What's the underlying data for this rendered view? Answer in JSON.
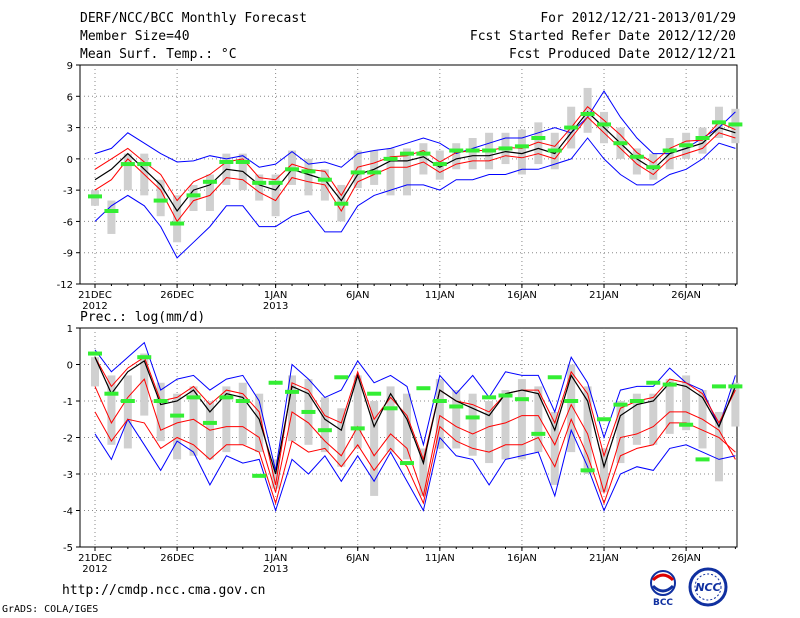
{
  "header": {
    "title": "DERF/NCC/BCC Monthly Forecast",
    "member_size": "Member Size=40",
    "variable": "Mean Surf. Temp.: °C",
    "period": "For 2012/12/21-2013/01/29",
    "started": "Fcst Started Refer Date 2012/12/20",
    "produced": "Fcst Produced Date 2012/12/21"
  },
  "footer": {
    "url": "http://cmdp.ncc.cma.gov.cn",
    "grads": "GrADS: COLA/IGES",
    "logo_bcc": "BCC",
    "logo_ncc": "NCC"
  },
  "colors": {
    "blue": "#0000ff",
    "red": "#ff0000",
    "black": "#000000",
    "green": "#33ee33",
    "box": "#d0d0d0",
    "dotted": "#888888"
  },
  "chart_data": [
    {
      "type": "line",
      "title": "Mean Surf. Temp.: °C",
      "x_day_index": [
        0,
        1,
        2,
        3,
        4,
        5,
        6,
        7,
        8,
        9,
        10,
        11,
        12,
        13,
        14,
        15,
        16,
        17,
        18,
        19,
        20,
        21,
        22,
        23,
        24,
        25,
        26,
        27,
        28,
        29,
        30,
        31,
        32,
        33,
        34,
        35,
        36,
        37,
        38,
        39
      ],
      "x_ticks": [
        {
          "day": 0,
          "label": "21DEC",
          "sub": "2012"
        },
        {
          "day": 5,
          "label": "26DEC",
          "sub": ""
        },
        {
          "day": 11,
          "label": "1JAN",
          "sub": "2013"
        },
        {
          "day": 16,
          "label": "6JAN",
          "sub": ""
        },
        {
          "day": 21,
          "label": "11JAN",
          "sub": ""
        },
        {
          "day": 26,
          "label": "16JAN",
          "sub": ""
        },
        {
          "day": 31,
          "label": "21JAN",
          "sub": ""
        },
        {
          "day": 36,
          "label": "26JAN",
          "sub": ""
        }
      ],
      "ylim": [
        -12,
        9
      ],
      "yticks": [
        -12,
        -9,
        -6,
        -3,
        0,
        3,
        6,
        9
      ],
      "series": [
        {
          "name": "max",
          "color": "blue",
          "values": [
            0.5,
            1,
            2.5,
            1.5,
            0.5,
            -0.3,
            -0.2,
            0.3,
            0,
            0.3,
            -0.8,
            -0.5,
            0.7,
            -0.5,
            -0.3,
            -0.8,
            0.5,
            0.8,
            1,
            1.5,
            2,
            1.5,
            0.5,
            1,
            1.5,
            2,
            2,
            2.5,
            3,
            2.5,
            4,
            6.5,
            4,
            2,
            0.5,
            0.5,
            1,
            2,
            3,
            4.5
          ]
        },
        {
          "name": "upper",
          "color": "red",
          "values": [
            -1,
            0,
            1,
            -0.3,
            -1.5,
            -4,
            -2.2,
            -1.5,
            -0.3,
            0,
            -1.8,
            -2,
            -0.5,
            -1,
            -1.2,
            -3.5,
            -0.8,
            -0.4,
            0.2,
            0.3,
            0.8,
            -0.3,
            0.6,
            0.8,
            0.8,
            1.1,
            1,
            1.6,
            1.2,
            3,
            5,
            3.7,
            2.3,
            0.6,
            -0.4,
            1,
            1.7,
            1.8,
            3.5,
            2.8
          ]
        },
        {
          "name": "mean",
          "color": "black",
          "values": [
            -2,
            -1,
            0.5,
            -1,
            -2.5,
            -5,
            -3,
            -2.5,
            -1,
            -1.2,
            -2.5,
            -3,
            -1,
            -1.5,
            -2,
            -4,
            -1.5,
            -1,
            -0.2,
            -0.2,
            0.2,
            -0.8,
            0,
            0.3,
            0.3,
            0.7,
            0.5,
            1,
            0.5,
            2.5,
            4.5,
            3,
            1.5,
            0,
            -1,
            0.5,
            1,
            1.5,
            3,
            2.5
          ]
        },
        {
          "name": "lower",
          "color": "red",
          "values": [
            -3,
            -2,
            0,
            -1.5,
            -3,
            -6,
            -4,
            -3.5,
            -1.8,
            -2,
            -3.2,
            -4,
            -1.8,
            -2.2,
            -2.5,
            -5,
            -2.2,
            -1.5,
            -0.8,
            -0.8,
            -0.3,
            -1.3,
            -0.5,
            -0.2,
            -0.2,
            0.3,
            0.1,
            0.5,
            0,
            2,
            4,
            2.5,
            1,
            -0.5,
            -1.5,
            0,
            0.5,
            1,
            2.5,
            2
          ]
        },
        {
          "name": "min",
          "color": "blue",
          "values": [
            -6,
            -4.5,
            -3.5,
            -4.5,
            -6.5,
            -9.5,
            -8,
            -6.5,
            -4.5,
            -4.5,
            -6.5,
            -6.5,
            -5.5,
            -5,
            -7,
            -7,
            -4.5,
            -3.5,
            -3,
            -2.5,
            -2.5,
            -3,
            -2,
            -2,
            -1.5,
            -1.5,
            -1,
            -1,
            -0.5,
            0,
            2,
            0,
            -1.5,
            -2.5,
            -2.5,
            -1.5,
            -1,
            0,
            1.5,
            1
          ]
        }
      ],
      "boxes": [
        [
          -4.5,
          -3
        ],
        [
          -7.2,
          -4
        ],
        [
          -3,
          0.5
        ],
        [
          -3.5,
          0.5
        ],
        [
          -5.5,
          -2
        ],
        [
          -8,
          -3.5
        ],
        [
          -5,
          -2.5
        ],
        [
          -5,
          -1.5
        ],
        [
          -2.5,
          0.5
        ],
        [
          -3,
          0.5
        ],
        [
          -4,
          -1.5
        ],
        [
          -5.5,
          -1.5
        ],
        [
          -2.5,
          0.8
        ],
        [
          -3.5,
          0
        ],
        [
          -4,
          -1
        ],
        [
          -6,
          -2.5
        ],
        [
          -2.8,
          0.8
        ],
        [
          -2.5,
          0.8
        ],
        [
          -3.5,
          1
        ],
        [
          -3.5,
          1
        ],
        [
          -1.5,
          1.5
        ],
        [
          -2,
          0.8
        ],
        [
          -1,
          1.5
        ],
        [
          -1,
          2
        ],
        [
          -1,
          2.5
        ],
        [
          -0.5,
          2.5
        ],
        [
          -1.5,
          2.8
        ],
        [
          -0.5,
          3.5
        ],
        [
          -1,
          2.5
        ],
        [
          1,
          5
        ],
        [
          2.5,
          6.8
        ],
        [
          1.5,
          4.5
        ],
        [
          0,
          3
        ],
        [
          -1.5,
          1
        ],
        [
          -2,
          0.5
        ],
        [
          -1,
          2
        ],
        [
          0,
          2.5
        ],
        [
          0.5,
          3
        ],
        [
          2,
          5
        ],
        [
          1.5,
          4.8
        ]
      ],
      "markers": [
        -3.6,
        -5,
        -0.5,
        -0.5,
        -4,
        -6.2,
        -3.5,
        -2.2,
        -0.3,
        -0.3,
        -2.3,
        -2.3,
        -1,
        -1.2,
        -2,
        -4.3,
        -1.3,
        -1.3,
        0,
        0.5,
        0.5,
        -0.5,
        0.8,
        0.8,
        0.8,
        1,
        1.2,
        2,
        0.8,
        3,
        4.3,
        3.3,
        1.5,
        0.2,
        -0.8,
        0.8,
        1.3,
        2,
        3.5,
        3.3
      ]
    },
    {
      "type": "line",
      "title": "Prec.: log(mm/d)",
      "x_day_index": [
        0,
        1,
        2,
        3,
        4,
        5,
        6,
        7,
        8,
        9,
        10,
        11,
        12,
        13,
        14,
        15,
        16,
        17,
        18,
        19,
        20,
        21,
        22,
        23,
        24,
        25,
        26,
        27,
        28,
        29,
        30,
        31,
        32,
        33,
        34,
        35,
        36,
        37,
        38,
        39
      ],
      "x_ticks": [
        {
          "day": 0,
          "label": "21DEC",
          "sub": "2012"
        },
        {
          "day": 5,
          "label": "26DEC",
          "sub": ""
        },
        {
          "day": 11,
          "label": "1JAN",
          "sub": "2013"
        },
        {
          "day": 16,
          "label": "6JAN",
          "sub": ""
        },
        {
          "day": 21,
          "label": "11JAN",
          "sub": ""
        },
        {
          "day": 26,
          "label": "16JAN",
          "sub": ""
        },
        {
          "day": 31,
          "label": "21JAN",
          "sub": ""
        },
        {
          "day": 36,
          "label": "26JAN",
          "sub": ""
        }
      ],
      "ylim": [
        -5,
        1
      ],
      "yticks": [
        -5,
        -4,
        -3,
        -2,
        -1,
        0,
        1
      ],
      "series": [
        {
          "name": "max",
          "color": "blue",
          "values": [
            0.4,
            -0.2,
            0.2,
            0.6,
            -0.7,
            -0.4,
            -0.3,
            -0.7,
            -0.4,
            -0.3,
            -1,
            -2.9,
            0,
            -0.4,
            -0.9,
            -0.7,
            0.1,
            -0.5,
            -0.3,
            -0.6,
            -2.2,
            -0.3,
            -0.8,
            -0.3,
            -0.9,
            -0.2,
            -0.3,
            -0.3,
            -1.3,
            0.2,
            -0.5,
            -2,
            -0.7,
            -0.6,
            -0.6,
            -0.1,
            -0.5,
            -0.7,
            -1.7,
            -0.3
          ]
        },
        {
          "name": "upper",
          "color": "red",
          "values": [
            0.2,
            -0.6,
            -0.1,
            0.2,
            -1,
            -0.9,
            -0.6,
            -1.1,
            -0.7,
            -0.8,
            -1.3,
            -3.3,
            -0.5,
            -0.7,
            -1.4,
            -1.6,
            -0.2,
            -1.5,
            -0.9,
            -1.4,
            -2.6,
            -0.7,
            -1,
            -1.1,
            -1.3,
            -0.8,
            -0.7,
            -0.7,
            -1.6,
            -0.2,
            -0.8,
            -2.5,
            -1.2,
            -1,
            -0.9,
            -0.4,
            -0.5,
            -0.8,
            -1.6,
            -0.7
          ]
        },
        {
          "name": "mean",
          "color": "black",
          "values": [
            0.2,
            -0.8,
            -0.2,
            0.1,
            -1.1,
            -1,
            -0.7,
            -1.3,
            -0.8,
            -0.9,
            -1.5,
            -3,
            -0.6,
            -0.8,
            -1.5,
            -1.8,
            -0.3,
            -1.7,
            -0.8,
            -1.5,
            -2.7,
            -0.7,
            -1,
            -1.2,
            -1.4,
            -0.8,
            -0.7,
            -0.8,
            -1.8,
            -0.3,
            -1,
            -2.8,
            -1.4,
            -1.1,
            -1,
            -0.5,
            -0.6,
            -0.9,
            -1.7,
            -0.6
          ]
        },
        {
          "name": "lower",
          "color": "red",
          "values": [
            -0.6,
            -1.6,
            -0.9,
            -0.4,
            -1.8,
            -1.6,
            -1.5,
            -1.8,
            -1.7,
            -1.7,
            -2,
            -3.5,
            -1.3,
            -1.6,
            -2.1,
            -2.5,
            -1.7,
            -2.5,
            -1.9,
            -2.3,
            -3.6,
            -1.4,
            -1.7,
            -1.9,
            -1.7,
            -1.6,
            -1.4,
            -1.4,
            -2.2,
            -1.1,
            -1.9,
            -3.5,
            -2,
            -1.9,
            -1.7,
            -1.3,
            -1.3,
            -1.5,
            -1.8,
            -2.6
          ]
        },
        {
          "name": "min",
          "color": "blue",
          "values": [
            -1.9,
            -2.6,
            -1.5,
            -2.2,
            -2.9,
            -2.1,
            -2.4,
            -3.3,
            -2.5,
            -2.7,
            -2.6,
            -4,
            -2.6,
            -3,
            -2.5,
            -3.2,
            -2.5,
            -3.2,
            -2.4,
            -3.2,
            -4,
            -2,
            -2.5,
            -2.6,
            -3.3,
            -2.6,
            -2.5,
            -2.4,
            -3.6,
            -1.8,
            -2.8,
            -4,
            -3,
            -2.8,
            -2.9,
            -2.3,
            -2.2,
            -2.4,
            -2.6,
            -2.5
          ]
        },
        {
          "name": "upper2",
          "color": "red",
          "values": [
            -1.3,
            -2.1,
            -1.5,
            -1.6,
            -2.3,
            -2,
            -2.2,
            -2.6,
            -2.2,
            -2.2,
            -2.4,
            -3.8,
            -2.1,
            -2.4,
            -2.3,
            -2.8,
            -2.2,
            -2.9,
            -2.3,
            -2.8,
            -3.8,
            -1.7,
            -2.1,
            -2.3,
            -2.4,
            -2.2,
            -2.2,
            -2,
            -2.8,
            -1.5,
            -2.5,
            -3.8,
            -2.5,
            -2.3,
            -2.2,
            -1.6,
            -1.6,
            -1.8,
            -2,
            -2.4
          ]
        }
      ],
      "boxes": [
        [
          -0.6,
          0.2
        ],
        [
          -2.2,
          -0.3
        ],
        [
          -2.3,
          -0.3
        ],
        [
          -1.4,
          0.3
        ],
        [
          -2.1,
          -0.5
        ],
        [
          -2.6,
          -0.8
        ],
        [
          -2.5,
          -0.6
        ],
        [
          -2.6,
          -1
        ],
        [
          -2.4,
          -0.6
        ],
        [
          -2.2,
          -0.5
        ],
        [
          -2.4,
          -0.8
        ],
        [
          -3.4,
          -2.6
        ],
        [
          -2.1,
          -0.3
        ],
        [
          -2.2,
          -0.4
        ],
        [
          -2.4,
          -0.9
        ],
        [
          -2.8,
          -1.2
        ],
        [
          -2.3,
          -0.3
        ],
        [
          -3.6,
          -1
        ],
        [
          -2.4,
          -0.6
        ],
        [
          -2.6,
          -0.8
        ],
        [
          -3.6,
          -2.3
        ],
        [
          -2.3,
          -0.4
        ],
        [
          -2.3,
          -0.7
        ],
        [
          -2.5,
          -0.8
        ],
        [
          -2.7,
          -1
        ],
        [
          -2.6,
          -0.7
        ],
        [
          -2.6,
          -0.4
        ],
        [
          -2.4,
          -0.6
        ],
        [
          -3.3,
          -1.3
        ],
        [
          -2.4,
          0
        ],
        [
          -3,
          -0.6
        ],
        [
          -3.5,
          -2.3
        ],
        [
          -2.7,
          -1
        ],
        [
          -2.2,
          -0.8
        ],
        [
          -2.2,
          -0.8
        ],
        [
          -1.9,
          -0.4
        ],
        [
          -1.8,
          -0.3
        ],
        [
          -2.3,
          -0.7
        ],
        [
          -3.2,
          -1.3
        ],
        [
          -1.7,
          -0.5
        ]
      ],
      "markers": [
        0.3,
        -0.8,
        -1,
        0.2,
        -1,
        -1.4,
        -0.9,
        -1.6,
        -0.9,
        -1,
        -3.05,
        -0.5,
        -0.75,
        -1.3,
        -1.8,
        -0.35,
        -1.75,
        -0.8,
        -1.2,
        -2.7,
        -0.65,
        -1,
        -1.15,
        -1.45,
        -0.9,
        -0.85,
        -0.95,
        -1.9,
        -0.35,
        -1,
        -2.9,
        -1.5,
        -1.1,
        -1,
        -0.5,
        -0.55,
        -1.65,
        -2.6,
        -0.6,
        -0.6
      ]
    }
  ]
}
